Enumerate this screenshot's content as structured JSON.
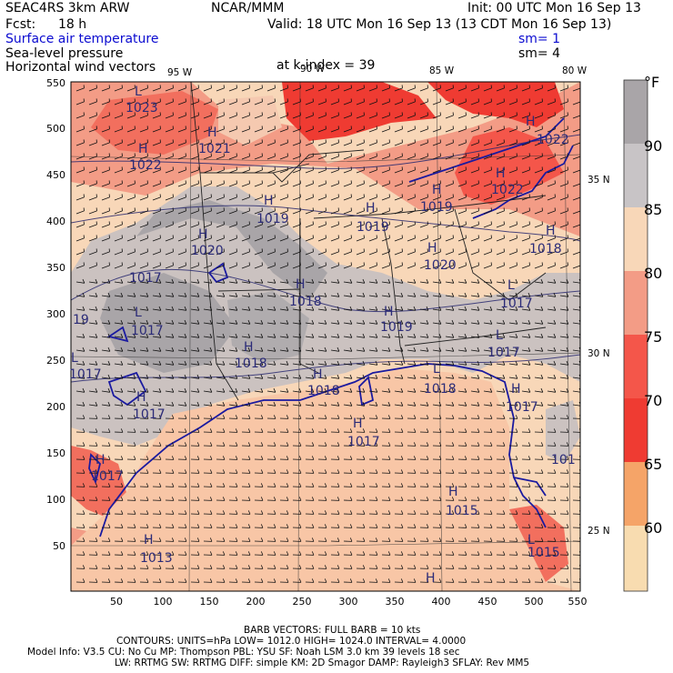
{
  "header": {
    "model": "SEAC4RS   3km ARW",
    "center": "NCAR/MMM",
    "init": "Init: 00 UTC Mon 16 Sep 13",
    "fcst_label": "Fcst:",
    "fcst_value": "18 h",
    "valid": "Valid: 18 UTC Mon 16 Sep 13 (13 CDT Mon 16 Sep 13)",
    "fields": [
      {
        "label": "Surface air temperature",
        "color": "#0b0bd0"
      },
      {
        "label": "Sea-level pressure",
        "color": "#000000"
      },
      {
        "label": "Horizontal wind vectors",
        "color": "#000000"
      }
    ],
    "sm1": "sm= 1",
    "sm2": "sm= 4",
    "k_index": "at k-index =  39"
  },
  "map": {
    "x_ticks": [
      "50",
      "100",
      "150",
      "200",
      "250",
      "300",
      "350",
      "400",
      "450",
      "500",
      "550"
    ],
    "y_ticks": [
      "550",
      "500",
      "450",
      "400",
      "350",
      "300",
      "250",
      "200",
      "150",
      "100",
      "50"
    ],
    "lon_labels": [
      "95 W",
      "90 W",
      "85 W",
      "80 W"
    ],
    "lat_labels": [
      "35 N",
      "30 N",
      "25 N"
    ],
    "highs": [
      {
        "label": "H",
        "value": "1022"
      },
      {
        "label": "H",
        "value": "1021"
      },
      {
        "label": "H",
        "value": "1019"
      },
      {
        "label": "H",
        "value": "1020"
      },
      {
        "label": "H",
        "value": "1019"
      },
      {
        "label": "H",
        "value": "1019"
      },
      {
        "label": "H",
        "value": "1020"
      },
      {
        "label": "H",
        "value": "1018"
      },
      {
        "label": "H",
        "value": "1018"
      },
      {
        "label": "H",
        "value": "1019"
      },
      {
        "label": "H",
        "value": "1018"
      },
      {
        "label": "H",
        "value": "1018"
      },
      {
        "label": "H",
        "value": "1017"
      },
      {
        "label": "H",
        "value": "1017"
      },
      {
        "label": "H",
        "value": "1017"
      },
      {
        "label": "H",
        "value": "1022"
      },
      {
        "label": "H",
        "value": "1022"
      },
      {
        "label": "H",
        "value": "1013"
      },
      {
        "label": "H",
        "value": "1015"
      },
      {
        "label": "H",
        "value": "1017"
      }
    ],
    "lows": [
      {
        "label": "L",
        "value": "1023"
      },
      {
        "label": "L",
        "value": "1017"
      },
      {
        "label": "L",
        "value": "1017"
      },
      {
        "label": "L",
        "value": "1015"
      },
      {
        "label": "L",
        "value": "1017"
      },
      {
        "label": "L",
        "value": "1017"
      },
      {
        "label": "L",
        "value": "1018"
      }
    ],
    "extra_labels": [
      "19",
      "101",
      "1017"
    ]
  },
  "legend": {
    "unit": "°F",
    "ticks": [
      "90",
      "85",
      "80",
      "75",
      "70",
      "65",
      "60"
    ],
    "colors": [
      "#f8dcb0",
      "#f7b98a",
      "#f09b88",
      "#f46b60",
      "#ef3b32",
      "#f5a468",
      "#c8c4c6",
      "#a9a5a8"
    ]
  },
  "footer": {
    "barb": "BARB VECTORS:  FULL BARB = 10 kts",
    "contours": "CONTOURS:  UNITS=hPa  LOW=   1012.0       HIGH=  1024.0      INTERVAL=    4.0000",
    "line1": "Model Info: V3.5      CU: No Cu      MP: Thompson      PBL: YSU       SF: Noah LSM      3.0 km   39 levels    18 sec",
    "line2": "LW: RRTMG    SW: RRTMG   DIFF: simple KM: 2D Smagor DAMP: Rayleigh3   SFLAY: Rev MM5"
  }
}
